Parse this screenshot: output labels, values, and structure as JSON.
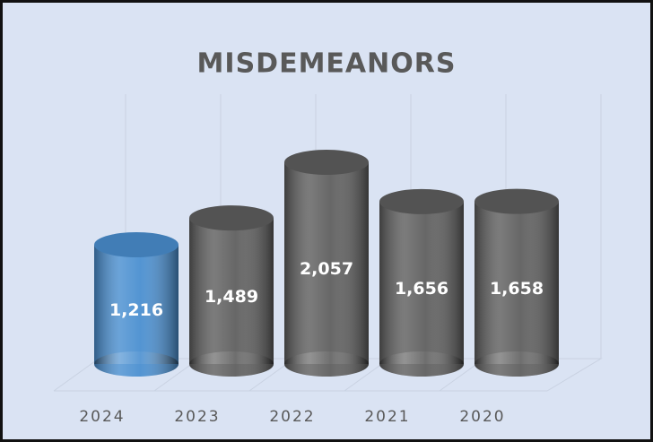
{
  "chart_data": {
    "type": "cylinder-bar",
    "title": "MISDEMEANORS",
    "categories": [
      "2024",
      "2023",
      "2022",
      "2021",
      "2020"
    ],
    "values": [
      1216,
      1489,
      2057,
      1656,
      1658
    ],
    "value_labels": [
      "1,216",
      "1,489",
      "2,057",
      "1,656",
      "1,658"
    ],
    "colors": [
      "#4a8fd0",
      "#5f5f5f",
      "#5f5f5f",
      "#5f5f5f",
      "#5f5f5f"
    ]
  }
}
